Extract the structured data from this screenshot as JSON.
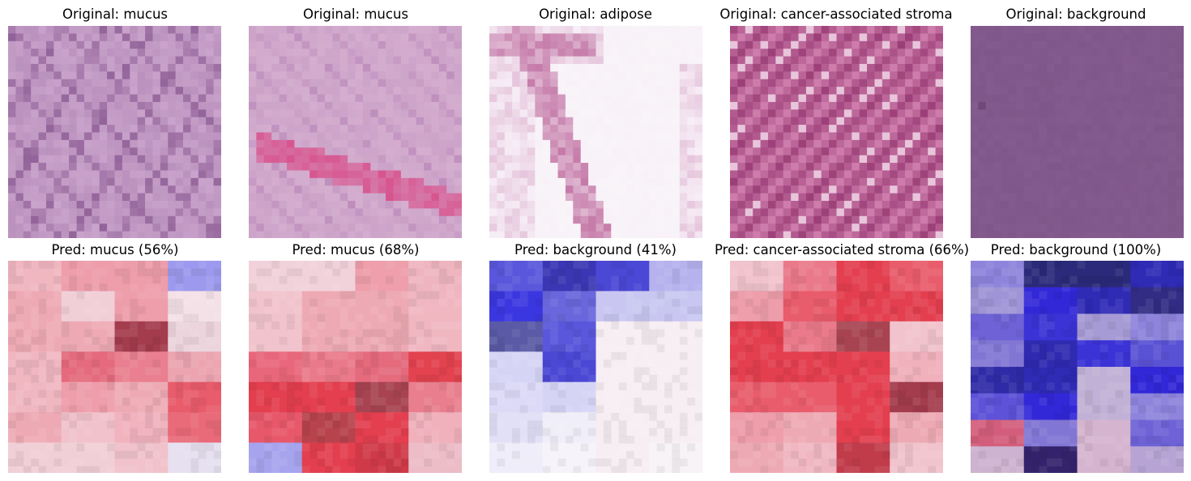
{
  "figure": {
    "panels": [
      {
        "original_title": "Original: mucus",
        "pred_title": "Pred: mucus (56%)",
        "original_base": "#c9a3cb",
        "original_accent": "#8c5c94",
        "original_style": "mucus",
        "pred_colors": [
          [
            "#f0b7c1",
            "#ee9daa",
            "#ee9daa",
            "#9d99ee"
          ],
          [
            "#eeaab4",
            "#f1cfd6",
            "#ee9daa",
            "#f4e1e8"
          ],
          [
            "#eeaab4",
            "#eeaab4",
            "#a33c4d",
            "#ecd4dc"
          ],
          [
            "#f0b7c1",
            "#e46a7c",
            "#e97f90",
            "#eba4b0"
          ],
          [
            "#f0b7c1",
            "#ee9daa",
            "#eeaab4",
            "#e95c6c"
          ],
          [
            "#eeaab4",
            "#f1c2cb",
            "#f1b3be",
            "#e96a78"
          ],
          [
            "#f1cfd6",
            "#f1cfd6",
            "#f1c2cb",
            "#e6e0f0"
          ]
        ]
      },
      {
        "original_title": "Original: mucus",
        "pred_title": "Pred: mucus (68%)",
        "original_base": "#d4aecf",
        "original_accent": "#d7558f",
        "original_style": "mucus2",
        "pred_colors": [
          [
            "#f1d2da",
            "#f1d2da",
            "#ee9fab",
            "#eeb5bf"
          ],
          [
            "#f1c3cc",
            "#eeaab4",
            "#eeaab4",
            "#f0b7c1"
          ],
          [
            "#f1c3cc",
            "#eeaab4",
            "#eeaab4",
            "#f0b7c1"
          ],
          [
            "#e9677a",
            "#ea7a8a",
            "#e46a7c",
            "#e2434f"
          ],
          [
            "#e43f4f",
            "#e43f4f",
            "#a84452",
            "#e97f8e"
          ],
          [
            "#e8586b",
            "#b7434d",
            "#e43f4f",
            "#f0b0bc"
          ],
          [
            "#a7a4ee",
            "#e43f4f",
            "#d03a48",
            "#ecbcc7"
          ]
        ]
      },
      {
        "original_title": "Original: adipose",
        "pred_title": "Pred: background (41%)",
        "original_base": "#f7eef7",
        "original_accent": "#c57aa8",
        "original_style": "adipose",
        "pred_colors": [
          [
            "#5a57dc",
            "#3b37b4",
            "#4b48d6",
            "#b5b2ee"
          ],
          [
            "#3b37e0",
            "#6a67dc",
            "#c9c7f1",
            "#c9c7f1"
          ],
          [
            "#5a5aa6",
            "#5a57dc",
            "#f7eef3",
            "#f7eef3"
          ],
          [
            "#d6d4f5",
            "#4b48d6",
            "#f7eef3",
            "#f7eef3"
          ],
          [
            "#dcdaf7",
            "#d6d4f5",
            "#f7eef3",
            "#f7eef3"
          ],
          [
            "#e2e0f7",
            "#f0eef8",
            "#f7eef3",
            "#f7eef3"
          ],
          [
            "#eeedf9",
            "#f7f3fa",
            "#f7eef3",
            "#f7f3f6"
          ]
        ]
      },
      {
        "original_title": "Original: cancer-associated stroma",
        "pred_title": "Pred: cancer-associated stroma (66%)",
        "original_base": "#d07fae",
        "original_accent": "#9c3f78",
        "original_style": "stroma",
        "pred_colors": [
          [
            "#f1c3cc",
            "#ea7a8a",
            "#e43f4f",
            "#e95c6c"
          ],
          [
            "#ee9daa",
            "#e95c6c",
            "#e43f4f",
            "#e43f4f"
          ],
          [
            "#e43f4f",
            "#ea7a8a",
            "#a84452",
            "#f1c3cc"
          ],
          [
            "#e43f4f",
            "#e43f4f",
            "#e43f4f",
            "#f0b0bc"
          ],
          [
            "#e95c6c",
            "#e95c6c",
            "#e43f4f",
            "#a33c4d"
          ],
          [
            "#ee9daa",
            "#eeaab4",
            "#e43f4f",
            "#eeaab4"
          ],
          [
            "#eeaab4",
            "#f0b7c1",
            "#c13c4b",
            "#f1c3cc"
          ]
        ]
      },
      {
        "original_title": "Original: background",
        "pred_title": "Pred: background (100%)",
        "original_base": "#845b8f",
        "original_accent": "#6e4a79",
        "original_style": "flat",
        "pred_colors": [
          [
            "#8e84dc",
            "#2b2a7a",
            "#2b2a7a",
            "#2f2bb5"
          ],
          [
            "#9f94d6",
            "#3328d8",
            "#2f2bb5",
            "#322d84"
          ],
          [
            "#6e62d6",
            "#3b33d6",
            "#a69bd4",
            "#8e84dc"
          ],
          [
            "#8276d4",
            "#2f2ab0",
            "#3b33d6",
            "#5a52d4"
          ],
          [
            "#2f2ba6",
            "#2f2bb5",
            "#c1b1d6",
            "#3328d8"
          ],
          [
            "#5d52d8",
            "#3328d8",
            "#c1b1d6",
            "#8e84dc"
          ],
          [
            "#d35e7c",
            "#8276d4",
            "#d5b4cf",
            "#6e62d6"
          ],
          [
            "#cdb3cf",
            "#34236c",
            "#d5b4cf",
            "#b7a4d4"
          ]
        ]
      }
    ]
  }
}
